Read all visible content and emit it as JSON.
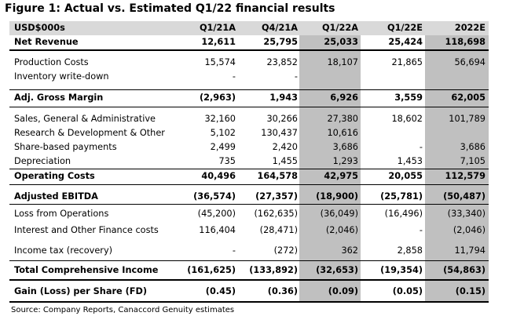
{
  "title": "Figure 1: Actual vs. Estimated Q1/22 financial results",
  "header": {
    "label": "USD$000s",
    "cols": [
      "Q1/21A",
      "Q4/21A",
      "Q1/22A",
      "Q1/22E",
      "2022E"
    ]
  },
  "rows": [
    {
      "label": "Net Revenue",
      "values": [
        "12,611",
        "25,795",
        "25,033",
        "25,424",
        "118,698"
      ],
      "bold": true
    },
    {
      "label": "Production Costs",
      "values": [
        "15,574",
        "23,852",
        "18,107",
        "21,865",
        "56,694"
      ],
      "bold": false
    },
    {
      "label": "Inventory write-down",
      "values": [
        "-",
        "-",
        "",
        "",
        ""
      ],
      "bold": false
    },
    {
      "label": "Adj. Gross Margin",
      "values": [
        "(2,963)",
        "1,943",
        "6,926",
        "3,559",
        "62,005"
      ],
      "bold": true
    },
    {
      "label": "Sales, General & Administrative",
      "values": [
        "32,160",
        "30,266",
        "27,380",
        "18,602",
        "101,789"
      ],
      "bold": false
    },
    {
      "label": "Research & Development & Other",
      "values": [
        "5,102",
        "130,437",
        "10,616",
        "",
        ""
      ],
      "bold": false
    },
    {
      "label": "Share-based payments",
      "values": [
        "2,499",
        "2,420",
        "3,686",
        "-",
        "3,686"
      ],
      "bold": false
    },
    {
      "label": "Depreciation",
      "values": [
        "735",
        "1,455",
        "1,293",
        "1,453",
        "7,105"
      ],
      "bold": false
    },
    {
      "label": "Operating Costs",
      "values": [
        "40,496",
        "164,578",
        "42,975",
        "20,055",
        "112,579"
      ],
      "bold": true
    },
    {
      "label": "Adjusted EBITDA",
      "values": [
        "(36,574)",
        "(27,357)",
        "(18,900)",
        "(25,781)",
        "(50,487)"
      ],
      "bold": true
    },
    {
      "label": "Loss from Operations",
      "values": [
        "(45,200)",
        "(162,635)",
        "(36,049)",
        "(16,496)",
        "(33,340)"
      ],
      "bold": false
    },
    {
      "label": "Interest and Other Finance costs",
      "values": [
        "116,404",
        "(28,471)",
        "(2,046)",
        "-",
        "(2,046)"
      ],
      "bold": false
    },
    {
      "label": "Income tax (recovery)",
      "values": [
        "-",
        "(272)",
        "362",
        "2,858",
        "11,794"
      ],
      "bold": false
    },
    {
      "label": "Total Comprehensive Income",
      "values": [
        "(161,625)",
        "(133,892)",
        "(32,653)",
        "(19,354)",
        "(54,863)"
      ],
      "bold": true
    },
    {
      "label": "Gain (Loss) per Share (FD)",
      "values": [
        "(0.45)",
        "(0.36)",
        "(0.09)",
        "(0.05)",
        "(0.15)"
      ],
      "bold": true
    }
  ],
  "source": "Source: Company Reports, Canaccord Genuity estimates"
}
